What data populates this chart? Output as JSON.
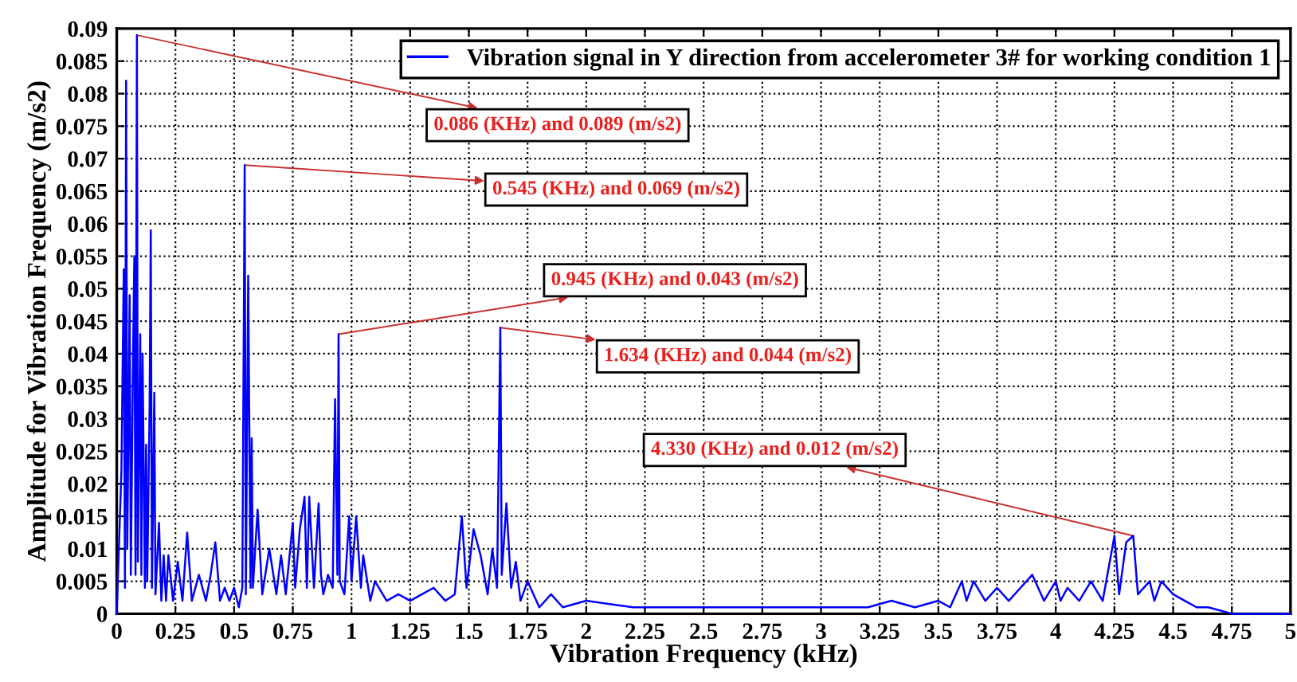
{
  "chart_data": {
    "type": "line",
    "xlabel": "Vibration Frequency (kHz)",
    "ylabel": "Amplitude for Vibration Frequency (m/s2)",
    "series": [
      {
        "name": "Vibration signal in Y direction from accelerometer 3# for working condition 1",
        "color": "#0000ff",
        "x": [
          0,
          0.02,
          0.03,
          0.035,
          0.04,
          0.045,
          0.055,
          0.06,
          0.07,
          0.075,
          0.08,
          0.086,
          0.09,
          0.1,
          0.105,
          0.11,
          0.12,
          0.125,
          0.13,
          0.14,
          0.145,
          0.15,
          0.16,
          0.165,
          0.18,
          0.19,
          0.2,
          0.21,
          0.22,
          0.24,
          0.26,
          0.28,
          0.3,
          0.32,
          0.35,
          0.38,
          0.4,
          0.42,
          0.44,
          0.46,
          0.48,
          0.5,
          0.52,
          0.535,
          0.545,
          0.55,
          0.56,
          0.57,
          0.575,
          0.58,
          0.6,
          0.62,
          0.65,
          0.68,
          0.7,
          0.72,
          0.75,
          0.76,
          0.78,
          0.8,
          0.81,
          0.82,
          0.84,
          0.86,
          0.87,
          0.88,
          0.9,
          0.92,
          0.93,
          0.94,
          0.945,
          0.95,
          0.97,
          0.99,
          1.0,
          1.02,
          1.04,
          1.05,
          1.08,
          1.1,
          1.15,
          1.2,
          1.25,
          1.3,
          1.35,
          1.4,
          1.44,
          1.47,
          1.49,
          1.52,
          1.55,
          1.58,
          1.6,
          1.62,
          1.634,
          1.64,
          1.66,
          1.68,
          1.7,
          1.72,
          1.75,
          1.8,
          1.85,
          1.9,
          2,
          2.2,
          2.4,
          2.6,
          2.8,
          3,
          3.2,
          3.3,
          3.4,
          3.5,
          3.55,
          3.6,
          3.62,
          3.65,
          3.7,
          3.75,
          3.8,
          3.85,
          3.9,
          3.95,
          4,
          4.02,
          4.05,
          4.1,
          4.15,
          4.2,
          4.25,
          4.27,
          4.3,
          4.33,
          4.35,
          4.4,
          4.42,
          4.45,
          4.5,
          4.55,
          4.6,
          4.65,
          4.7,
          4.75,
          4.8,
          4.9,
          5
        ],
        "values": [
          0,
          0.022,
          0.053,
          0.004,
          0.082,
          0.01,
          0.049,
          0.006,
          0.041,
          0.055,
          0.006,
          0.089,
          0.008,
          0.043,
          0.006,
          0.04,
          0.004,
          0.026,
          0.005,
          0.032,
          0.059,
          0.004,
          0.034,
          0.003,
          0.014,
          0.002,
          0.009,
          0.002,
          0.009,
          0.002,
          0.008,
          0.002,
          0.0125,
          0.002,
          0.006,
          0.002,
          0.006,
          0.011,
          0.002,
          0.004,
          0.002,
          0.004,
          0.001,
          0.004,
          0.069,
          0.003,
          0.052,
          0.004,
          0.027,
          0.004,
          0.016,
          0.003,
          0.01,
          0.003,
          0.009,
          0.003,
          0.014,
          0.004,
          0.013,
          0.018,
          0.004,
          0.018,
          0.004,
          0.017,
          0.006,
          0.003,
          0.006,
          0.004,
          0.033,
          0.006,
          0.043,
          0.005,
          0.003,
          0.015,
          0.005,
          0.015,
          0.004,
          0.009,
          0.002,
          0.005,
          0.002,
          0.003,
          0.002,
          0.003,
          0.004,
          0.002,
          0.003,
          0.015,
          0.004,
          0.013,
          0.009,
          0.003,
          0.01,
          0.004,
          0.044,
          0.006,
          0.017,
          0.004,
          0.008,
          0.002,
          0.005,
          0.001,
          0.003,
          0.001,
          0.002,
          0.001,
          0.001,
          0.001,
          0.001,
          0.001,
          0.001,
          0.002,
          0.001,
          0.002,
          0.001,
          0.005,
          0.002,
          0.005,
          0.002,
          0.004,
          0.002,
          0.004,
          0.006,
          0.002,
          0.005,
          0.002,
          0.004,
          0.002,
          0.005,
          0.002,
          0.012,
          0.003,
          0.011,
          0.012,
          0.003,
          0.005,
          0.002,
          0.005,
          0.003,
          0.002,
          0.001,
          0.001,
          0.0005,
          0,
          0,
          0,
          0
        ]
      }
    ],
    "xlim": [
      0,
      5
    ],
    "xticks": [
      0,
      0.25,
      0.5,
      0.75,
      1,
      1.25,
      1.5,
      1.75,
      2,
      2.25,
      2.5,
      2.75,
      3,
      3.25,
      3.5,
      3.75,
      4,
      4.25,
      4.5,
      4.75,
      5
    ],
    "ylim": [
      0,
      0.09
    ],
    "yticks": [
      0,
      0.005,
      0.01,
      0.015,
      0.02,
      0.025,
      0.03,
      0.035,
      0.04,
      0.045,
      0.05,
      0.055,
      0.06,
      0.065,
      0.07,
      0.075,
      0.08,
      0.085,
      0.09
    ],
    "grid": true,
    "legend": "top right",
    "marker": "none",
    "line_style": "solid",
    "annotations": [
      {
        "text": "0.086 (KHz) and 0.089 (m/s2)",
        "x": 0.086,
        "y": 0.089
      },
      {
        "text": "0.545 (KHz) and 0.069 (m/s2)",
        "x": 0.545,
        "y": 0.069
      },
      {
        "text": "0.945 (KHz) and 0.043 (m/s2)",
        "x": 0.945,
        "y": 0.043
      },
      {
        "text": "1.634 (KHz) and 0.044 (m/s2)",
        "x": 1.634,
        "y": 0.044
      },
      {
        "text": "4.330 (KHz) and 0.012 (m/s2)",
        "x": 4.33,
        "y": 0.012
      }
    ]
  }
}
